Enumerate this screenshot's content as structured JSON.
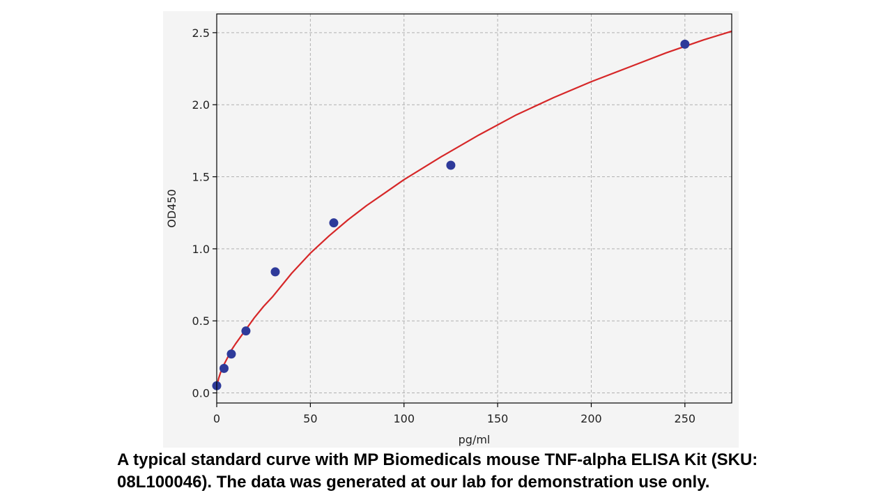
{
  "chart_data": {
    "type": "scatter",
    "xlabel": "pg/ml",
    "ylabel": "OD450",
    "xlim": [
      0,
      275
    ],
    "ylim": [
      -0.07,
      2.63
    ],
    "x_ticks": [
      0,
      50,
      100,
      150,
      200,
      250
    ],
    "y_ticks": [
      0.0,
      0.5,
      1.0,
      1.5,
      2.0,
      2.5
    ],
    "x_tick_labels": [
      "0",
      "50",
      "100",
      "150",
      "200",
      "250"
    ],
    "y_tick_labels": [
      "0.0",
      "0.5",
      "1.0",
      "1.5",
      "2.0",
      "2.5"
    ],
    "grid": true,
    "series": [
      {
        "kind": "points",
        "color": "#2e3a9a",
        "x": [
          0,
          3.9,
          7.8,
          15.6,
          31.25,
          62.5,
          125,
          250
        ],
        "y": [
          0.05,
          0.17,
          0.27,
          0.43,
          0.84,
          1.18,
          1.58,
          2.42
        ]
      },
      {
        "kind": "fit-curve",
        "color": "#d62728",
        "x": [
          0,
          1,
          2,
          4,
          6,
          8,
          10,
          15,
          20,
          25,
          30,
          40,
          50,
          60,
          70,
          80,
          90,
          100,
          120,
          140,
          160,
          180,
          200,
          220,
          240,
          260,
          275
        ],
        "y": [
          0.04,
          0.1,
          0.14,
          0.2,
          0.25,
          0.3,
          0.34,
          0.43,
          0.52,
          0.6,
          0.67,
          0.83,
          0.97,
          1.09,
          1.2,
          1.3,
          1.39,
          1.48,
          1.64,
          1.79,
          1.93,
          2.05,
          2.16,
          2.26,
          2.36,
          2.45,
          2.51
        ]
      }
    ]
  },
  "caption": {
    "line1": "A typical standard curve with MP Biomedicals mouse TNF-alpha ELISA Kit (SKU:",
    "line2": "08L100046). The data was generated at our lab for demonstration use only."
  }
}
